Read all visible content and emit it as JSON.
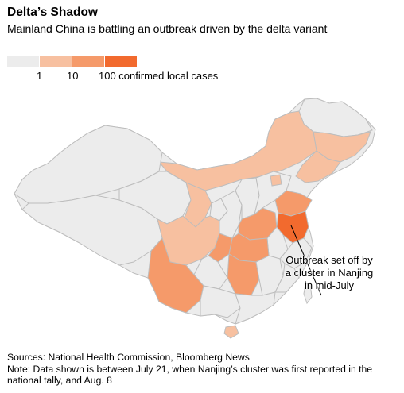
{
  "title": "Delta’s Shadow",
  "subtitle": "Mainland China is battling an outbreak driven by the delta variant",
  "legend": {
    "colors": [
      "#ececec",
      "#f7c0a0",
      "#f59a6a",
      "#f26a2e"
    ],
    "labels": [
      "1",
      "10",
      "100 confirmed local cases"
    ]
  },
  "annotation": {
    "line1": "Outbreak set off by",
    "line2": "a cluster in Nanjing",
    "line3": "in mid-July"
  },
  "footer": {
    "sources": "Sources: National Health Commission, Bloomberg News",
    "note": "Note: Data shown is between July 21, when Nanjing’s cluster was first reported in the national tally, and Aug. 8"
  },
  "map": {
    "region_fill": "#ececec",
    "border_color": "#bdbdbd"
  }
}
